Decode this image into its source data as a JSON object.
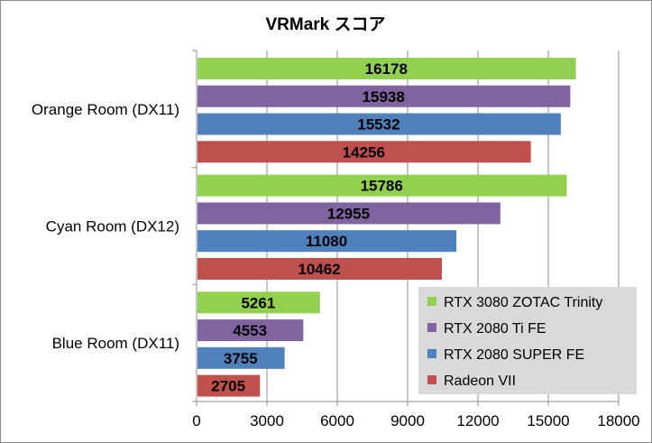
{
  "chart_data": {
    "type": "bar",
    "orientation": "horizontal",
    "title": "VRMark スコア",
    "categories": [
      "Orange Room (DX11)",
      "Cyan Room (DX12)",
      "Blue Room (DX11)"
    ],
    "series": [
      {
        "name": "RTX 3080 ZOTAC Trinity",
        "color": "#92d050",
        "values": [
          16178,
          15786,
          5261
        ]
      },
      {
        "name": "RTX 2080 Ti FE",
        "color": "#8064a2",
        "values": [
          15938,
          12955,
          4553
        ]
      },
      {
        "name": "RTX 2080 SUPER FE",
        "color": "#4f81bd",
        "values": [
          15532,
          11080,
          3755
        ]
      },
      {
        "name": "Radeon VII",
        "color": "#c0504d",
        "values": [
          14256,
          10462,
          2705
        ]
      }
    ],
    "xlim": [
      0,
      18000
    ],
    "xticks": [
      0,
      3000,
      6000,
      9000,
      12000,
      15000,
      18000
    ],
    "grid": true,
    "legend_position": "bottom-right",
    "legend_background": "#d9d9d9"
  }
}
